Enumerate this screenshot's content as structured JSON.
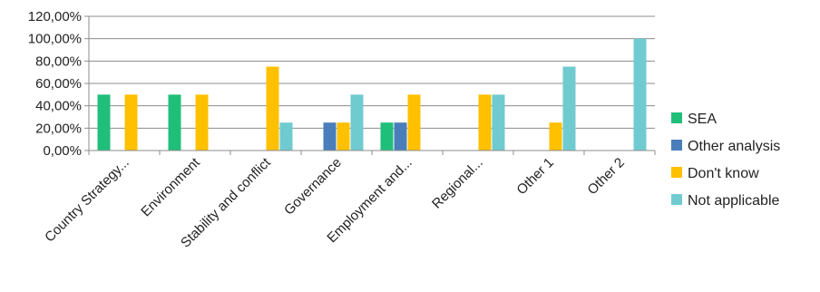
{
  "chart_data": {
    "type": "bar",
    "title": "",
    "xlabel": "",
    "ylabel": "",
    "ylim": [
      0,
      120
    ],
    "y_ticks": [
      "0,00%",
      "20,00%",
      "40,00%",
      "60,00%",
      "80,00%",
      "100,00%",
      "120,00%"
    ],
    "grid": true,
    "legend_position": "right",
    "categories": [
      "Country Strategy...",
      "Environment",
      "Stability and conflict",
      "Governance",
      "Employment and...",
      "Regional...",
      "Other 1",
      "Other 2"
    ],
    "series": [
      {
        "name": "SEA",
        "color": "#1fbf7a",
        "values": [
          50,
          50,
          0,
          0,
          25,
          0,
          0,
          0
        ]
      },
      {
        "name": "Other analysis",
        "color": "#4a7ebb",
        "values": [
          0,
          0,
          0,
          25,
          25,
          0,
          0,
          0
        ]
      },
      {
        "name": "Don't know",
        "color": "#ffc000",
        "values": [
          50,
          50,
          75,
          25,
          50,
          50,
          25,
          0
        ]
      },
      {
        "name": "Not applicable",
        "color": "#70cbd0",
        "values": [
          0,
          0,
          25,
          50,
          0,
          50,
          75,
          100
        ]
      }
    ]
  }
}
